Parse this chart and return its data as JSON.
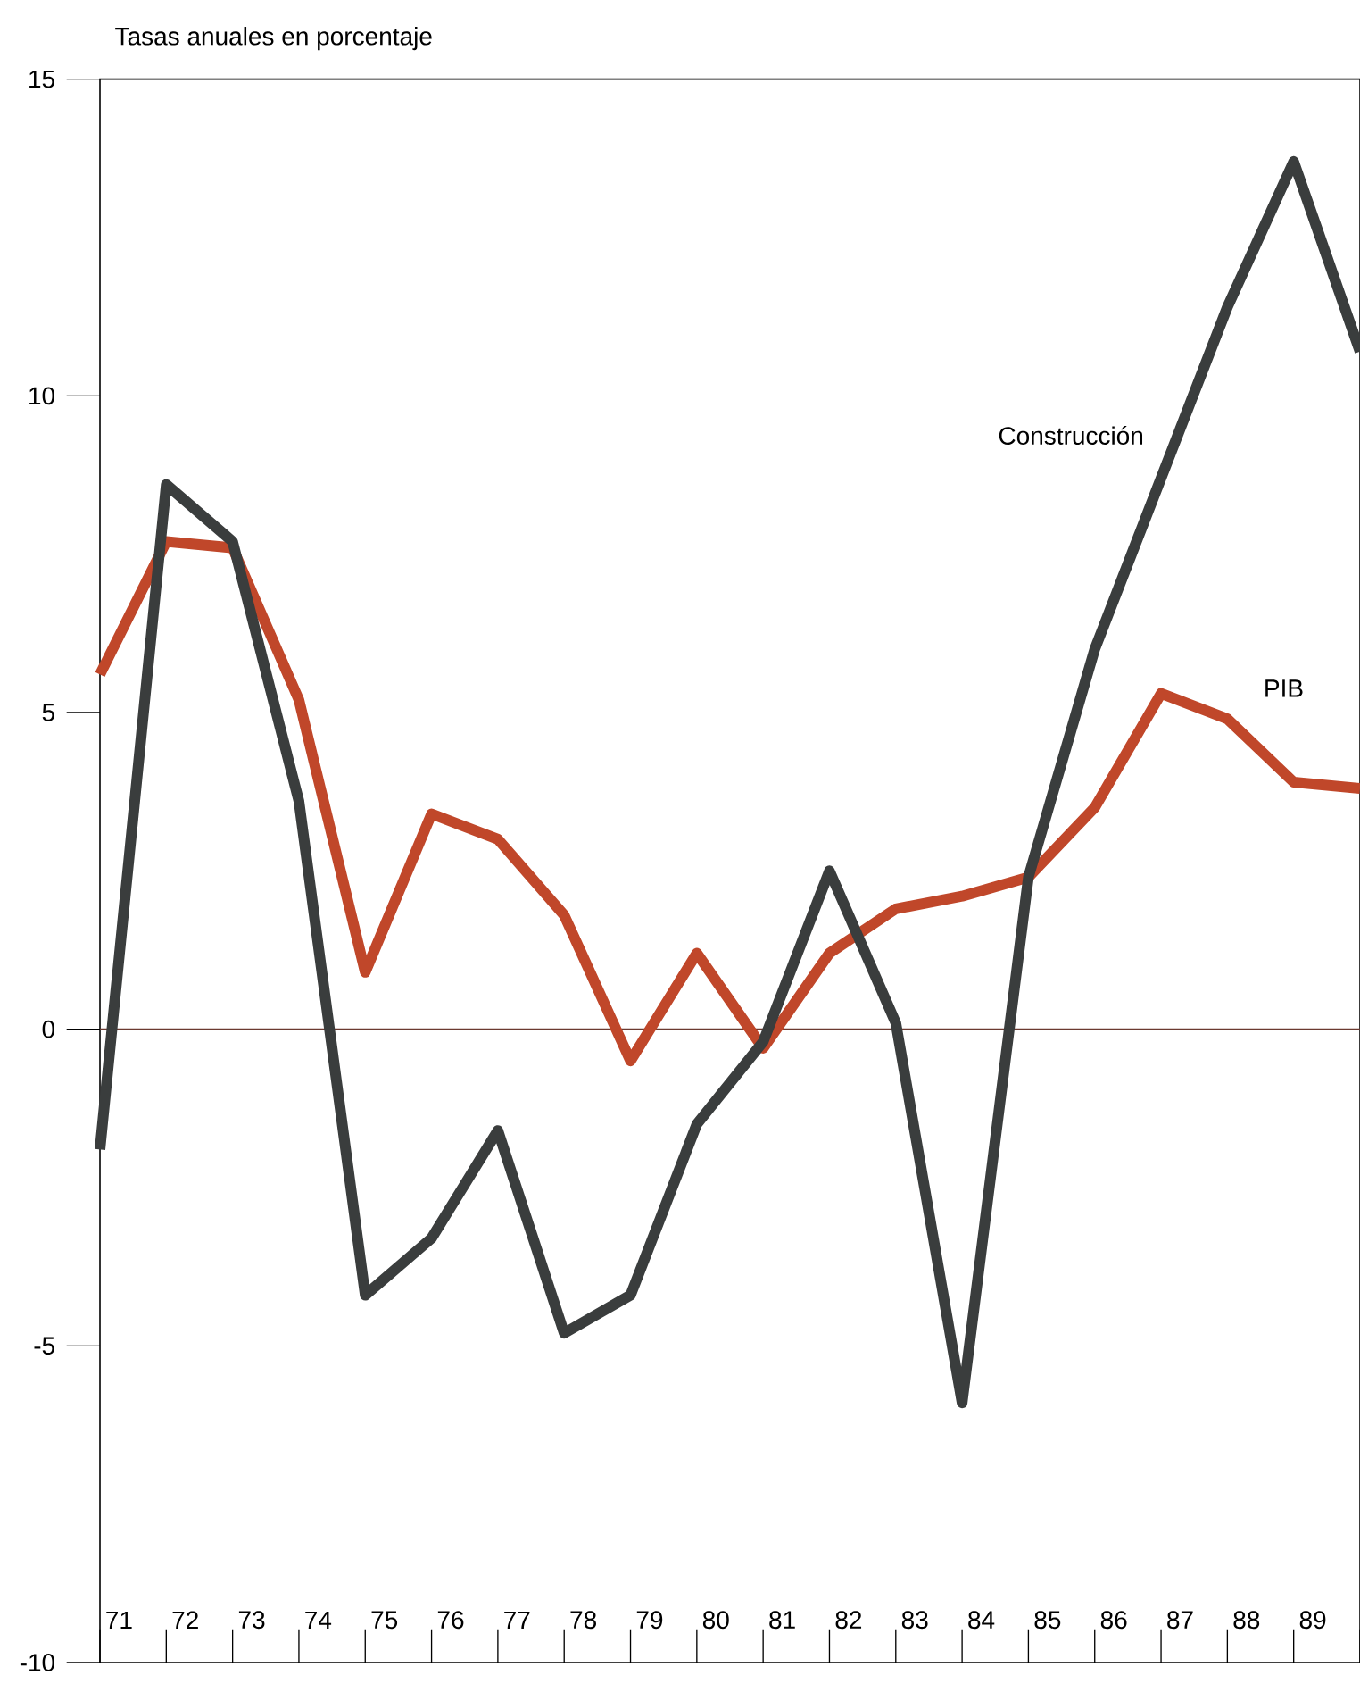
{
  "chart_data": {
    "type": "line",
    "ylabel": "Tasas anuales en porcentaje",
    "categories": [
      "71",
      "72",
      "73",
      "74",
      "75",
      "76",
      "77",
      "78",
      "79",
      "80",
      "81",
      "82",
      "83",
      "84",
      "85",
      "86",
      "87",
      "88",
      "89",
      null
    ],
    "series": [
      {
        "name": "PIB",
        "color": "#c0472a",
        "values": [
          5.6,
          7.7,
          7.6,
          5.2,
          0.9,
          3.4,
          3.0,
          1.8,
          -0.5,
          1.2,
          -0.3,
          1.2,
          1.9,
          2.1,
          2.4,
          3.5,
          5.3,
          4.9,
          3.9,
          3.8
        ]
      },
      {
        "name": "Construcción",
        "color": "#3a3d3d",
        "values": [
          -1.9,
          8.6,
          7.7,
          3.6,
          -4.2,
          -3.3,
          -1.6,
          -4.8,
          -4.2,
          -1.5,
          -0.2,
          2.5,
          0.1,
          -5.9,
          2.4,
          6.0,
          8.7,
          11.4,
          13.7,
          10.7
        ]
      }
    ],
    "ylim": [
      -10,
      15
    ],
    "yticks": [
      -10,
      -5,
      0,
      5,
      10,
      15
    ],
    "grid": false,
    "marker": "none",
    "line_style": "solid",
    "ref_lines": [
      {
        "axis": "y",
        "value": 0,
        "color": "#6b3a30"
      }
    ]
  }
}
